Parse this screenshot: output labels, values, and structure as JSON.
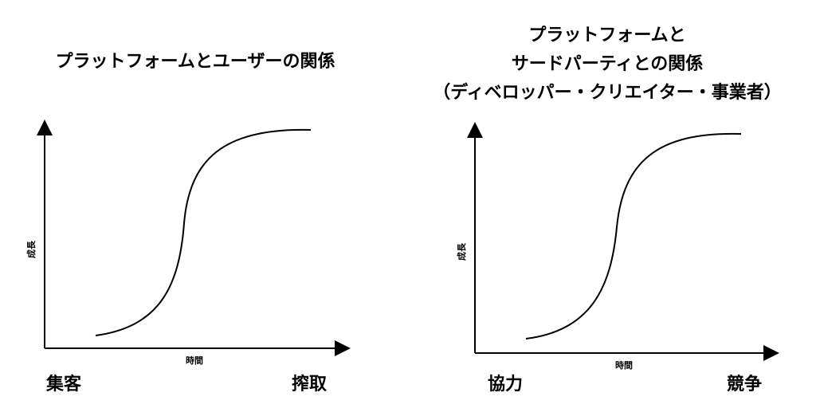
{
  "left": {
    "title": "プラットフォームとユーザーの関係",
    "ylabel": "成長",
    "xlabel": "時間",
    "left_label": "集客",
    "right_label": "搾取"
  },
  "right": {
    "title_lines": [
      "プラットフォームと",
      "サードパーティとの関係",
      "（ディベロッパー・クリエイター・事業者）"
    ],
    "ylabel": "成長",
    "xlabel": "時間",
    "left_label": "協力",
    "right_label": "競争"
  }
}
